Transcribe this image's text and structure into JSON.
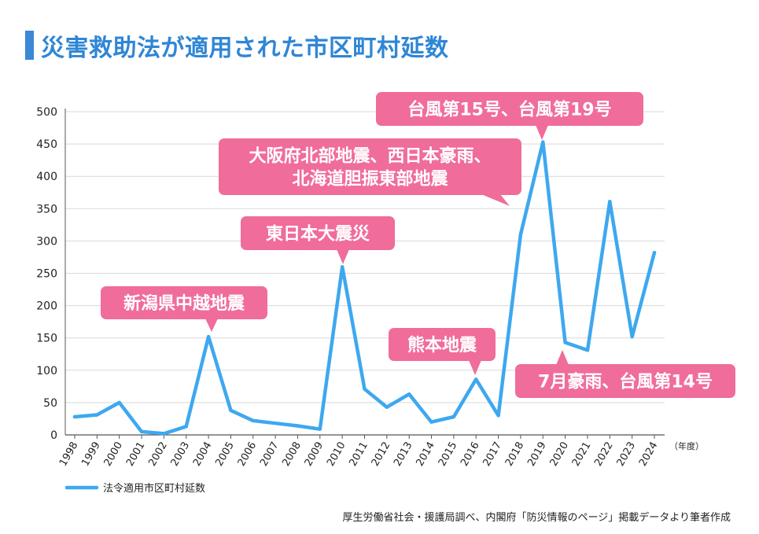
{
  "title": "災害救助法が適用された市区町村延数",
  "source": "厚生労働省社会・援護局調べ、内閣府「防災情報のページ」掲載データより筆者作成",
  "colors": {
    "line": "#3ea8ef",
    "callout": "#f06c9b",
    "title": "#2f86d5",
    "grid": "#d9d9d9"
  },
  "chart_data": {
    "type": "line",
    "x": [
      "1998",
      "1999",
      "2000",
      "2001",
      "2002",
      "2003",
      "2004",
      "2005",
      "2006",
      "2007",
      "2008",
      "2009",
      "2010",
      "2011",
      "2012",
      "2013",
      "2014",
      "2015",
      "2016",
      "2017",
      "2018",
      "2019",
      "2020",
      "2021",
      "2022",
      "2023",
      "2024"
    ],
    "x_unit": "（年度）",
    "series": [
      {
        "name": "法令適用市区町村延数",
        "values": [
          28,
          31,
          50,
          5,
          2,
          13,
          152,
          38,
          22,
          18,
          14,
          9,
          260,
          71,
          43,
          63,
          20,
          28,
          86,
          30,
          310,
          453,
          143,
          131,
          361,
          152,
          282
        ]
      }
    ],
    "ylim": [
      0,
      500
    ],
    "yticks": [
      0,
      50,
      100,
      150,
      200,
      250,
      300,
      350,
      400,
      450,
      500
    ],
    "grid": true,
    "legend": "bottom-left",
    "annotations": [
      {
        "text": [
          "新潟県中越地震"
        ],
        "year": "2004",
        "value": 152
      },
      {
        "text": [
          "東日本大震災"
        ],
        "year": "2010",
        "value": 260
      },
      {
        "text": [
          "熊本地震"
        ],
        "year": "2016",
        "value": 86
      },
      {
        "text": [
          "大阪府北部地震、西日本豪雨、",
          "北海道胆振東部地震"
        ],
        "year": "2018",
        "value": 310
      },
      {
        "text": [
          "台風第15号、台風第19号"
        ],
        "year": "2019",
        "value": 453
      },
      {
        "text": [
          "7月豪雨、台風第14号"
        ],
        "year": "2020",
        "value": 143
      }
    ]
  }
}
